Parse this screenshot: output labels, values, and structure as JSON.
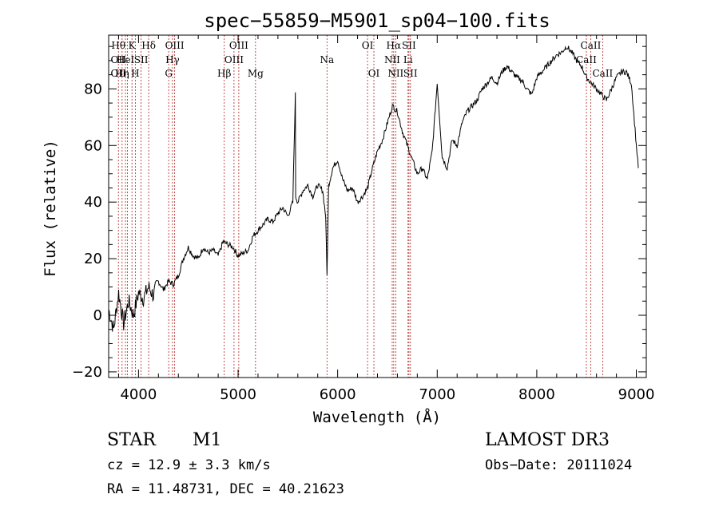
{
  "chart_data": {
    "type": "line",
    "title": "spec−55859−M5901_sp04−100.fits",
    "xlabel": "Wavelength (Å)",
    "ylabel": "Flux (relative)",
    "xlim": [
      3700,
      9100
    ],
    "ylim": [
      -22,
      99
    ],
    "xticks": [
      4000,
      5000,
      6000,
      7000,
      8000,
      9000
    ],
    "yticks": [
      -20,
      0,
      20,
      40,
      60,
      80
    ],
    "grid": false,
    "series": [
      {
        "name": "flux",
        "x": [
          3700,
          3750,
          3800,
          3850,
          3900,
          3950,
          4000,
          4050,
          4100,
          4150,
          4200,
          4250,
          4300,
          4350,
          4400,
          4450,
          4500,
          4550,
          4600,
          4650,
          4700,
          4750,
          4800,
          4850,
          4900,
          4950,
          5000,
          5050,
          5100,
          5150,
          5200,
          5250,
          5300,
          5350,
          5400,
          5450,
          5500,
          5550,
          5575,
          5578,
          5600,
          5650,
          5700,
          5750,
          5800,
          5850,
          5880,
          5893,
          5910,
          5950,
          6000,
          6050,
          6100,
          6150,
          6200,
          6250,
          6300,
          6350,
          6400,
          6450,
          6500,
          6550,
          6600,
          6650,
          6700,
          6750,
          6800,
          6850,
          6900,
          6950,
          7000,
          7050,
          7100,
          7150,
          7200,
          7250,
          7300,
          7350,
          7400,
          7450,
          7500,
          7550,
          7600,
          7650,
          7700,
          7750,
          7800,
          7850,
          7900,
          7950,
          8000,
          8050,
          8100,
          8150,
          8200,
          8250,
          8300,
          8350,
          8400,
          8450,
          8500,
          8550,
          8600,
          8650,
          8700,
          8750,
          8800,
          8850,
          8900,
          8950,
          9000,
          9020
        ],
        "y": [
          2,
          -5,
          8,
          -3,
          5,
          0,
          8,
          6,
          10,
          7,
          12,
          9,
          12,
          11,
          14,
          20,
          24,
          21,
          20,
          24,
          22,
          23,
          21,
          26,
          25,
          24,
          21,
          22,
          23,
          28,
          30,
          32,
          34,
          33,
          36,
          38,
          35,
          40,
          78,
          42,
          40,
          44,
          46,
          42,
          46,
          44,
          35,
          14,
          46,
          52,
          55,
          48,
          44,
          45,
          40,
          42,
          45,
          52,
          58,
          62,
          68,
          74,
          72,
          65,
          60,
          55,
          50,
          52,
          48,
          58,
          82,
          56,
          52,
          62,
          60,
          68,
          72,
          74,
          76,
          80,
          82,
          84,
          82,
          86,
          88,
          86,
          84,
          83,
          80,
          78,
          84,
          86,
          88,
          90,
          92,
          93,
          95,
          93,
          90,
          88,
          84,
          82,
          80,
          78,
          76,
          80,
          84,
          86,
          86,
          82,
          60,
          52
        ]
      }
    ],
    "lines": [
      {
        "wave": 3798,
        "rows": [
          "Hθ",
          "OII",
          "OII"
        ]
      },
      {
        "wave": 3835,
        "rows": [
          "",
          "",
          "Hη"
        ]
      },
      {
        "wave": 3869,
        "rows": [
          "",
          "HeI",
          ""
        ]
      },
      {
        "wave": 3889,
        "rows": [
          "",
          "",
          ""
        ]
      },
      {
        "wave": 3934,
        "rows": [
          "K",
          "",
          ""
        ]
      },
      {
        "wave": 3968,
        "rows": [
          "",
          "",
          "H"
        ]
      },
      {
        "wave": 4026,
        "rows": [
          "",
          "SII",
          ""
        ]
      },
      {
        "wave": 4102,
        "rows": [
          "Hδ",
          "",
          ""
        ]
      },
      {
        "wave": 4303,
        "rows": [
          "",
          "",
          "G"
        ]
      },
      {
        "wave": 4341,
        "rows": [
          "",
          "Hγ",
          ""
        ]
      },
      {
        "wave": 4363,
        "rows": [
          "OIII",
          "",
          ""
        ]
      },
      {
        "wave": 4861,
        "rows": [
          "",
          "",
          "Hβ"
        ]
      },
      {
        "wave": 4959,
        "rows": [
          "",
          "OIII",
          ""
        ]
      },
      {
        "wave": 5007,
        "rows": [
          "OIII",
          "",
          ""
        ]
      },
      {
        "wave": 5175,
        "rows": [
          "",
          "",
          "Mg"
        ]
      },
      {
        "wave": 5893,
        "rows": [
          "",
          "Na",
          ""
        ]
      },
      {
        "wave": 6300,
        "rows": [
          "OI",
          "",
          ""
        ]
      },
      {
        "wave": 6364,
        "rows": [
          "",
          "",
          "OI"
        ]
      },
      {
        "wave": 6548,
        "rows": [
          "",
          "NII",
          ""
        ]
      },
      {
        "wave": 6563,
        "rows": [
          "Hα",
          "",
          ""
        ]
      },
      {
        "wave": 6583,
        "rows": [
          "",
          "",
          "NII"
        ]
      },
      {
        "wave": 6707,
        "rows": [
          "",
          "Li",
          ""
        ]
      },
      {
        "wave": 6716,
        "rows": [
          "SII",
          "",
          ""
        ]
      },
      {
        "wave": 6731,
        "rows": [
          "",
          "",
          "SII"
        ]
      },
      {
        "wave": 8498,
        "rows": [
          "",
          "CaII",
          ""
        ]
      },
      {
        "wave": 8542,
        "rows": [
          "CaII",
          "",
          ""
        ]
      },
      {
        "wave": 8662,
        "rows": [
          "",
          "",
          "CaII"
        ]
      }
    ]
  },
  "info": {
    "object_class": "STAR",
    "subclass": "M1",
    "survey": "LAMOST DR3",
    "cz": "cz = 12.9 ± 3.3 km/s",
    "obs_date": "Obs−Date: 20111024",
    "coords": "RA =  11.48731, DEC =  40.21623"
  },
  "colors": {
    "spectrum": "#000000",
    "line_marker": "#b22222",
    "axes": "#000000",
    "background": "#ffffff"
  }
}
